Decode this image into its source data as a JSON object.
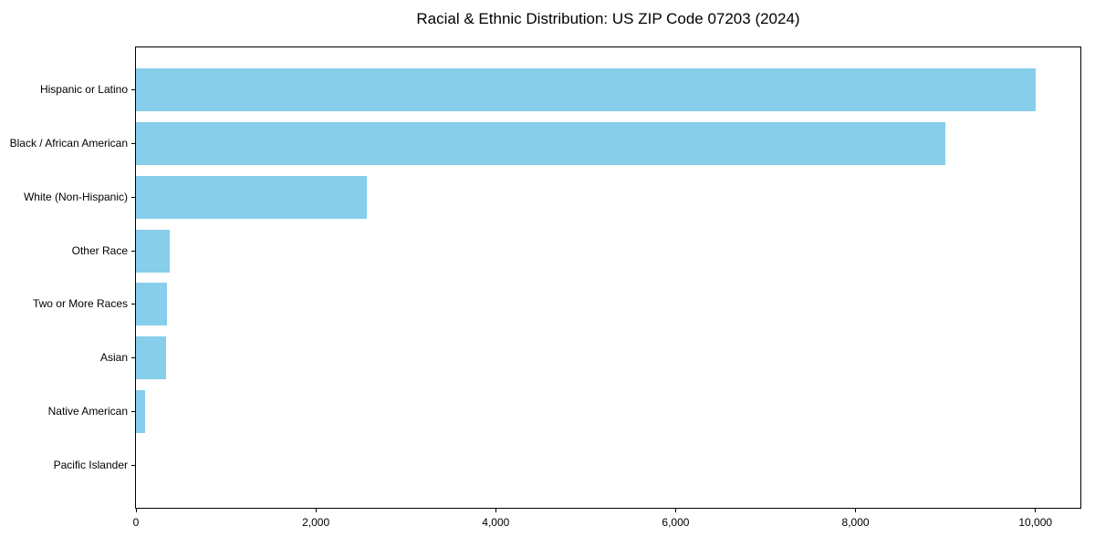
{
  "chart_data": {
    "type": "bar",
    "orientation": "horizontal",
    "title": "Racial & Ethnic Distribution: US ZIP Code 07203 (2024)",
    "categories": [
      "Hispanic or Latino",
      "Black / African American",
      "White (Non-Hispanic)",
      "Other Race",
      "Two or More Races",
      "Asian",
      "Native American",
      "Pacific Islander"
    ],
    "values": [
      10000,
      9000,
      2570,
      380,
      340,
      330,
      100,
      0
    ],
    "bar_color": "#87CEEB",
    "text_color": "#000000",
    "xlabel": "",
    "ylabel": "",
    "xlim": [
      0,
      10500
    ],
    "x_ticks": [
      0,
      2000,
      4000,
      6000,
      8000,
      10000
    ],
    "x_tick_labels": [
      "0",
      "2,000",
      "4,000",
      "6,000",
      "8,000",
      "10,000"
    ],
    "grid": false,
    "legend": "none",
    "background": "#ffffff"
  }
}
